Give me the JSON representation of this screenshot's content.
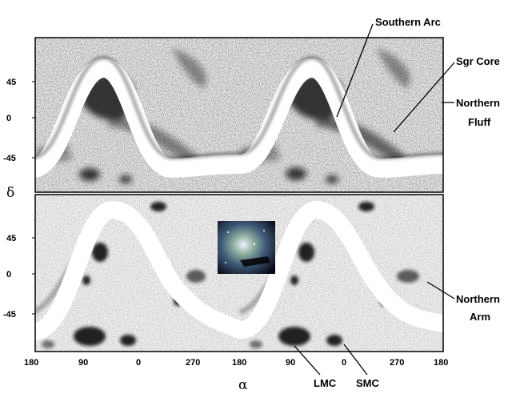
{
  "figure": {
    "axes": {
      "x_symbol": "α",
      "y_symbol": "δ",
      "x_ticks": [
        "180",
        "90",
        "0",
        "270",
        "180",
        "90",
        "0",
        "270",
        "180"
      ],
      "y_ticks_top": [
        "45",
        "0",
        "-45"
      ],
      "y_ticks_bottom": [
        "45",
        "0",
        "-45"
      ]
    },
    "annotations": {
      "southern_arc": "Southern Arc",
      "sgr_core": "Sgr Core",
      "northern_fluff_1": "Northern",
      "northern_fluff_2": "Fluff",
      "northern_arm_1": "Northern",
      "northern_arm_2": "Arm",
      "lmc": "LMC",
      "smc": "SMC"
    },
    "inset": {
      "description_icon": "galaxy-photo-icon"
    },
    "colors": {
      "ink": "#000000",
      "background": "#ffffff",
      "band": "#ffffff"
    }
  }
}
